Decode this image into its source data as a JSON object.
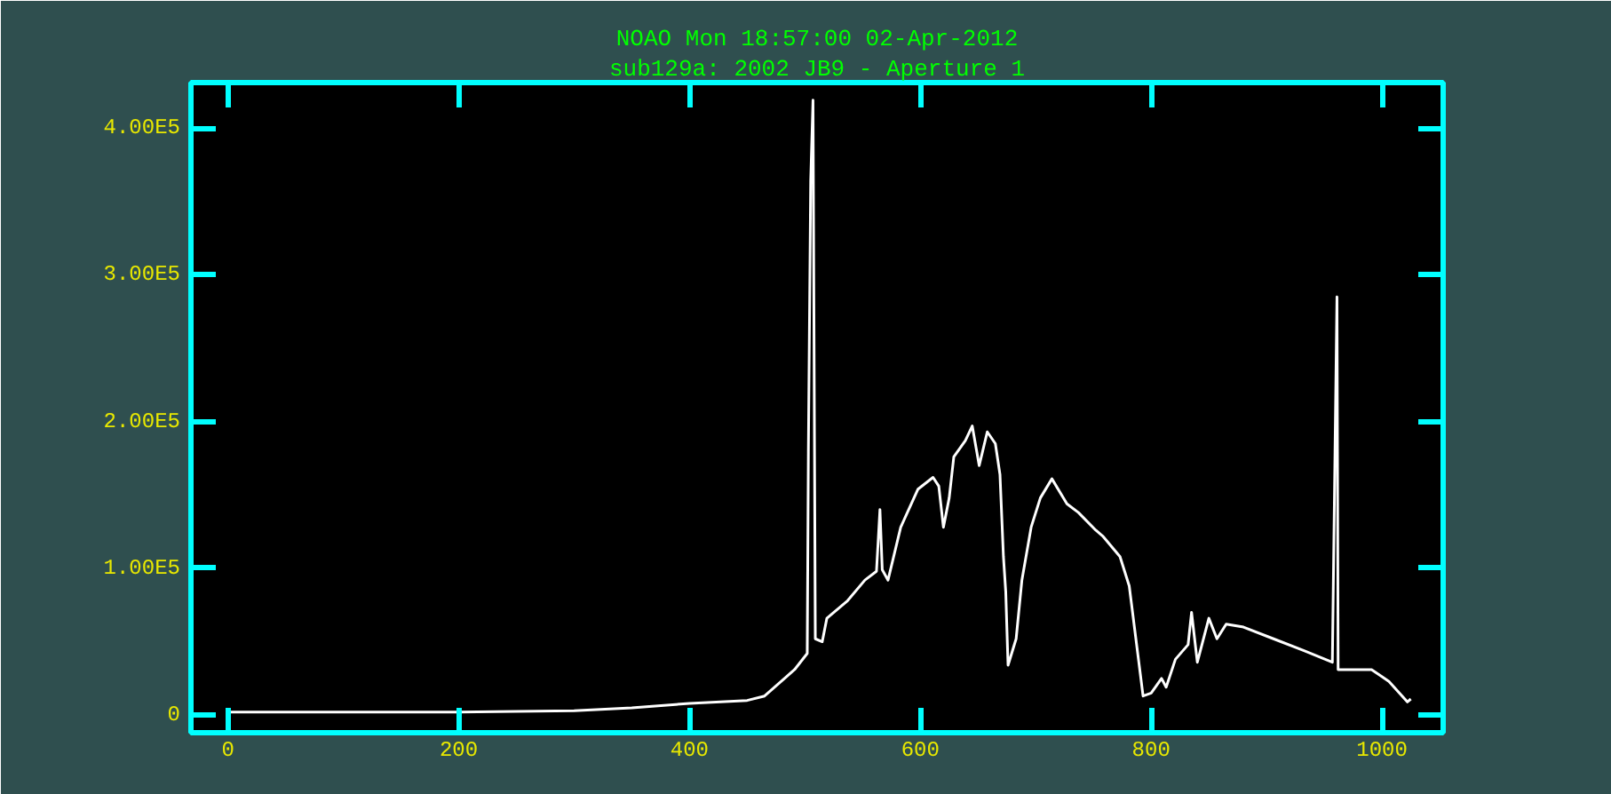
{
  "chart_data": {
    "type": "line",
    "title": "NOAO Mon 18:57:00 02-Apr-2012",
    "subtitle": "sub129a: 2002 JB9 - Aperture 1",
    "x": [
      0,
      100,
      200,
      300,
      350,
      400,
      450,
      465,
      491,
      502,
      503,
      505,
      507,
      509,
      515,
      519,
      537,
      552,
      562,
      565,
      567,
      572,
      583,
      598,
      611,
      616,
      620,
      625,
      629,
      639,
      645,
      651,
      658,
      665,
      669,
      672,
      674,
      676,
      683,
      688,
      696,
      704,
      714,
      727,
      737,
      752,
      758,
      773,
      781,
      793,
      800,
      809,
      813,
      821,
      832,
      835,
      840,
      850,
      857,
      865,
      880,
      906,
      932,
      957,
      961,
      962,
      964,
      991,
      1006,
      1022,
      1025
    ],
    "series": [
      {
        "color": "#ffffff",
        "values": [
          2000,
          2000,
          2000,
          3000,
          5000,
          8000,
          10000,
          13000,
          31000,
          42000,
          181000,
          364000,
          419000,
          52000,
          50000,
          66000,
          78000,
          92000,
          98000,
          140000,
          99000,
          92000,
          128000,
          154000,
          162000,
          156000,
          128000,
          148000,
          176000,
          187000,
          197000,
          170000,
          193000,
          185000,
          164000,
          108000,
          84000,
          34000,
          52000,
          92000,
          128000,
          148000,
          161000,
          144000,
          138000,
          126000,
          122000,
          108000,
          88000,
          13000,
          15000,
          25000,
          19000,
          38000,
          48000,
          70000,
          36000,
          66000,
          52000,
          62000,
          60000,
          52000,
          44000,
          36000,
          285000,
          31000,
          31000,
          31000,
          23000,
          9000,
          11000
        ]
      }
    ],
    "xlim": [
      -32,
      1053
    ],
    "ylim": [
      -12000,
      431000
    ],
    "xticks": [
      0,
      200,
      400,
      600,
      800,
      1000
    ],
    "yticks": [
      0,
      {
        "value": 100000,
        "label": "1.00E5"
      },
      {
        "value": 200000,
        "label": "2.00E5"
      },
      {
        "value": 300000,
        "label": "3.00E5"
      },
      {
        "value": 400000,
        "label": "4.00E5"
      }
    ],
    "grid": false
  }
}
